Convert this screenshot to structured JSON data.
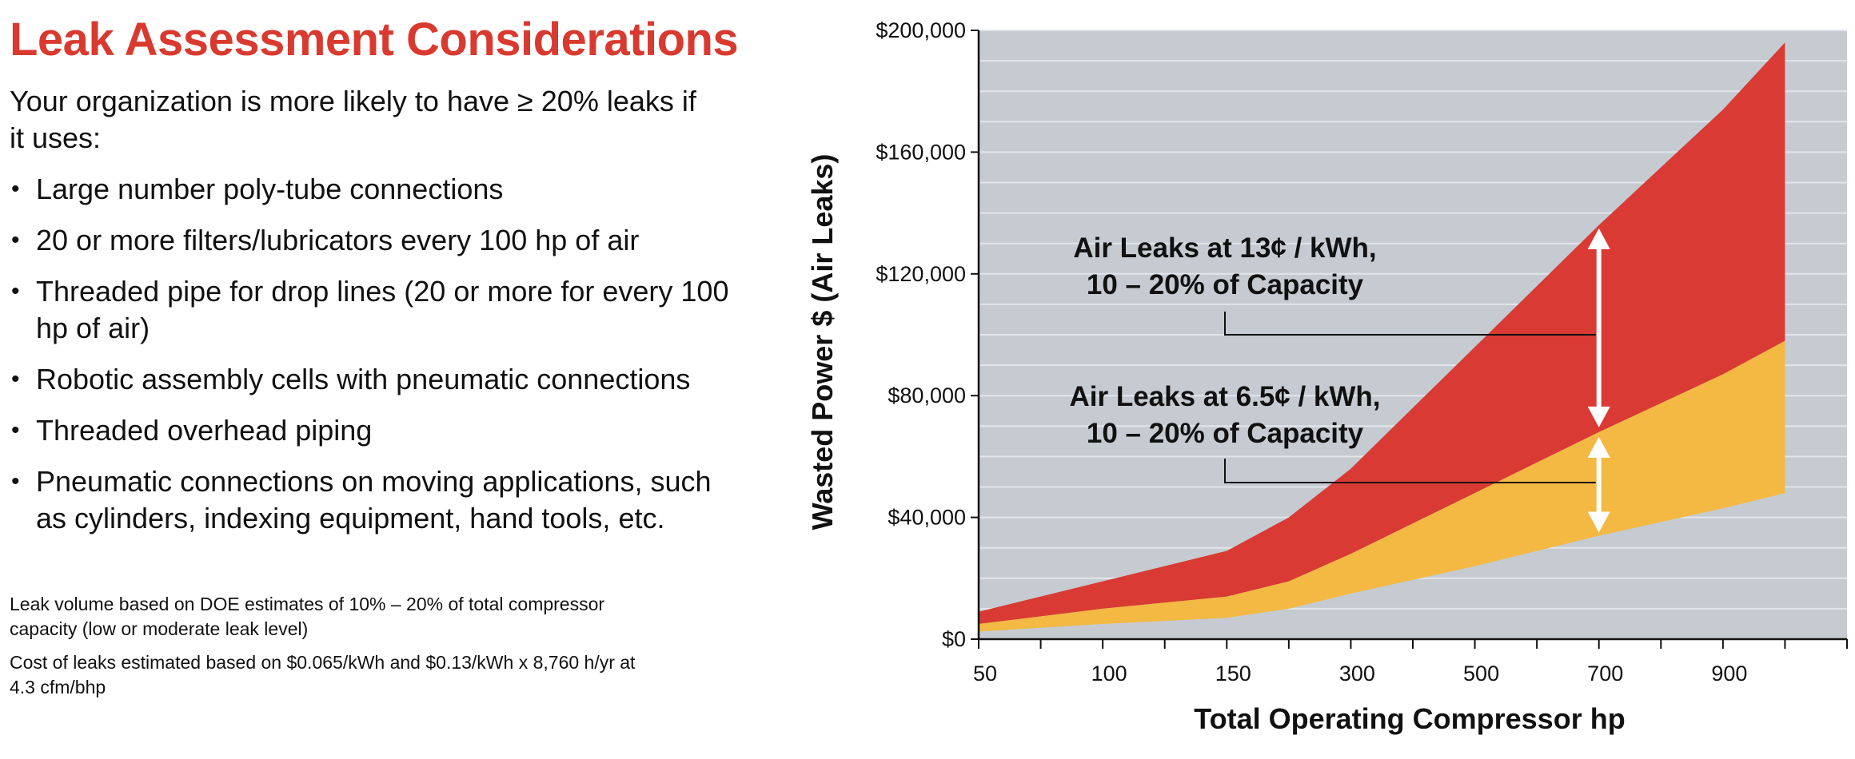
{
  "left": {
    "title": "Leak Assessment Considerations",
    "intro": "Your organization is more likely to have ≥ 20% leaks if it uses:",
    "bullets": [
      "Large number poly-tube connections",
      "20 or more filters/lubricators  every 100 hp of air",
      "Threaded pipe for drop lines (20 or more for every 100 hp of air)",
      "Robotic assembly cells with pneumatic connections",
      "Threaded overhead piping",
      "Pneumatic connections on moving applications, such as cylinders, indexing equipment, hand tools, etc."
    ],
    "notes": [
      "Leak volume based on DOE estimates of 10% – 20% of total compressor capacity (low or moderate leak level)",
      "Cost of leaks estimated based on $0.065/kWh and $0.13/kWh x 8,760 h/yr at 4.3 cfm/bhp"
    ]
  },
  "chart_data": {
    "type": "area",
    "xlabel": "Total Operating Compressor hp",
    "ylabel": "Wasted Power $ (Air Leaks)",
    "x_tick_labels": [
      "50",
      "100",
      "150",
      "300",
      "500",
      "700",
      "900"
    ],
    "x_categories": [
      "50",
      "",
      "100",
      "",
      "150",
      "",
      "300",
      "",
      "500",
      "",
      "700",
      "",
      "900",
      ""
    ],
    "ylim": [
      0,
      200000
    ],
    "y_ticks": [
      0,
      40000,
      80000,
      120000,
      160000,
      200000
    ],
    "y_tick_labels": [
      "$0",
      "$40,000",
      "$80,000",
      "$120,000",
      "$160,000",
      "$200,000"
    ],
    "grid": true,
    "colors": {
      "background": "#c5cbd1",
      "grid": "#e2e6ea",
      "high_cost_band": "#d93a34",
      "low_cost_band": "#f3b942",
      "arrow": "#ffffff"
    },
    "series": [
      {
        "points": [
          [
            0,
            2500
          ],
          [
            2,
            5000
          ],
          [
            4,
            7000
          ],
          [
            5,
            10000
          ],
          [
            6,
            15000
          ],
          [
            8,
            24000
          ],
          [
            10,
            34000
          ],
          [
            12,
            43000
          ],
          [
            13,
            48000
          ]
        ]
      },
      {
        "points": [
          [
            0,
            5000
          ],
          [
            2,
            10000
          ],
          [
            4,
            14000
          ],
          [
            5,
            19000
          ],
          [
            6,
            28000
          ],
          [
            8,
            48000
          ],
          [
            10,
            68000
          ],
          [
            12,
            87000
          ],
          [
            13,
            98000
          ]
        ]
      },
      {
        "points": [
          [
            0,
            9000
          ],
          [
            2,
            19000
          ],
          [
            4,
            29000
          ],
          [
            5,
            40000
          ],
          [
            6,
            56000
          ],
          [
            8,
            96000
          ],
          [
            10,
            136000
          ],
          [
            12,
            174000
          ],
          [
            13,
            196000
          ]
        ]
      }
    ],
    "annotations": [
      {
        "line1": "Air Leaks at 13¢ / kWh,",
        "line2": "10 – 20% of Capacity"
      },
      {
        "line1": "Air Leaks at 6.5¢ / kWh,",
        "line2": "10 – 20% of Capacity"
      }
    ]
  }
}
